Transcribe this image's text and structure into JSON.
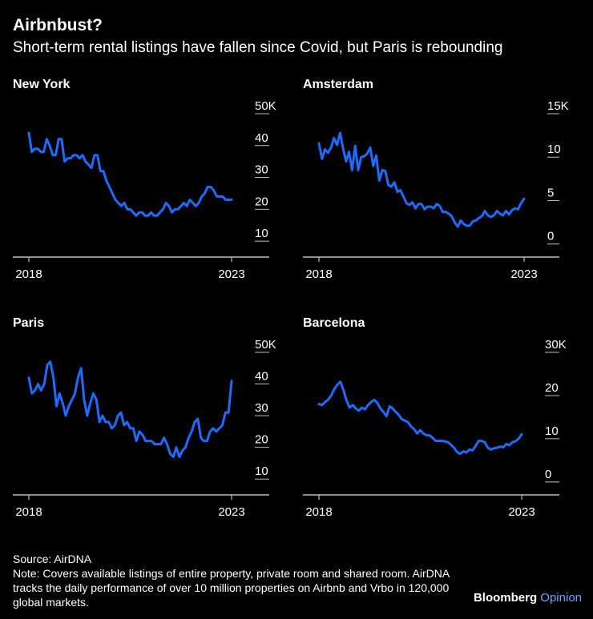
{
  "title": "Airbnbust?",
  "subtitle": "Short-term rental listings have fallen since Covid, but Paris is rebounding",
  "footer": {
    "source": "Source: AirDNA",
    "note": "Note: Covers available listings of entire property, private room and shared room. AirDNA tracks the daily performance of over 10 million properties on Airbnb and Vrbo in 120,000 global markets."
  },
  "brand": {
    "name": "Bloomberg",
    "suffix": "Opinion"
  },
  "colors": {
    "line": "#1f6bff",
    "grid": "#bdbdbd",
    "background": "#000000",
    "text": "#ffffff"
  },
  "chart_data": [
    {
      "type": "line",
      "title": "New York",
      "x_start": 2018.0,
      "x_end": 2023.0,
      "x_ticks": [
        2018,
        2023
      ],
      "y_ticks": [
        10,
        20,
        30,
        40,
        50
      ],
      "y_tick_labels": [
        "10",
        "20",
        "30",
        "40",
        "50K"
      ],
      "ylim": [
        5,
        50
      ],
      "values": [
        44,
        38,
        39,
        39,
        38,
        38,
        42,
        40,
        37,
        37,
        42,
        42,
        35,
        36,
        36,
        37,
        37,
        36,
        37,
        35,
        34,
        33,
        37,
        37,
        32,
        32,
        29,
        27,
        25,
        23,
        22,
        21,
        22,
        20,
        20,
        19,
        18,
        19,
        19,
        18,
        18,
        19,
        18,
        18,
        19,
        20,
        22,
        21,
        19,
        20,
        20,
        21,
        22,
        21,
        23,
        22,
        21,
        22,
        24,
        25,
        27,
        27,
        26,
        24,
        24,
        24,
        23,
        23,
        23
      ]
    },
    {
      "type": "line",
      "title": "Amsterdam",
      "x_start": 2018.0,
      "x_end": 2023.0,
      "x_ticks": [
        2018,
        2023
      ],
      "y_ticks": [
        0,
        5,
        10,
        15
      ],
      "y_tick_labels": [
        "0",
        "5",
        "10",
        "15K"
      ],
      "ylim": [
        -1.5,
        15
      ],
      "values": [
        11.6,
        9.8,
        10.9,
        10.5,
        11.1,
        12.2,
        11.4,
        12.8,
        11.0,
        9.5,
        10.6,
        8.5,
        11.3,
        8.5,
        10.0,
        10.1,
        10.4,
        11.1,
        9.0,
        10.2,
        7.3,
        8.5,
        8.4,
        6.8,
        6.6,
        7.1,
        6.0,
        6.2,
        5.5,
        4.7,
        4.5,
        4.8,
        4.1,
        4.6,
        4.6,
        4.0,
        4.3,
        4.3,
        4.1,
        4.6,
        4.4,
        3.7,
        3.7,
        3.5,
        3.2,
        2.5,
        2.0,
        2.7,
        2.3,
        2.1,
        2.1,
        2.6,
        2.7,
        3.0,
        3.2,
        3.8,
        3.3,
        3.1,
        3.3,
        3.8,
        3.5,
        3.3,
        3.8,
        3.4,
        3.9,
        4.1,
        4.0,
        4.7,
        5.2
      ]
    },
    {
      "type": "line",
      "title": "Paris",
      "x_start": 2018.0,
      "x_end": 2023.0,
      "x_ticks": [
        2018,
        2023
      ],
      "y_ticks": [
        10,
        20,
        30,
        40,
        50
      ],
      "y_tick_labels": [
        "10",
        "20",
        "30",
        "40",
        "50K"
      ],
      "ylim": [
        5,
        50
      ],
      "values": [
        42,
        37,
        38,
        40,
        38,
        40,
        46,
        47,
        42,
        33,
        37,
        34,
        30,
        33,
        35,
        37,
        42,
        45,
        35,
        30,
        34,
        37,
        35,
        28,
        30,
        28,
        28,
        26,
        27,
        30,
        31,
        27,
        28,
        26,
        26,
        22,
        25,
        24,
        22,
        22,
        22,
        21,
        21,
        21,
        23,
        21,
        18,
        17,
        20,
        17,
        19,
        20,
        23,
        25,
        28,
        29,
        23,
        22,
        22,
        25,
        26,
        25,
        26,
        27,
        31,
        31,
        41
      ]
    },
    {
      "type": "line",
      "title": "Barcelona",
      "x_start": 2018.0,
      "x_end": 2023.0,
      "x_ticks": [
        2018,
        2023
      ],
      "y_ticks": [
        0,
        10,
        20,
        30
      ],
      "y_tick_labels": [
        "0",
        "10",
        "20",
        "30K"
      ],
      "ylim": [
        -3,
        30
      ],
      "values": [
        18.0,
        17.8,
        18.5,
        19.0,
        20.0,
        21.5,
        22.5,
        23.2,
        21.2,
        18.8,
        17.2,
        17.8,
        17.0,
        16.5,
        17.2,
        16.8,
        17.8,
        18.5,
        19.0,
        18.3,
        17.0,
        16.2,
        15.2,
        17.5,
        17.0,
        16.2,
        15.5,
        14.5,
        14.2,
        13.8,
        12.8,
        12.2,
        11.2,
        12.0,
        11.2,
        10.8,
        10.8,
        10.2,
        9.5,
        9.5,
        9.5,
        9.4,
        9.2,
        8.6,
        7.9,
        6.9,
        6.5,
        7.1,
        6.8,
        7.5,
        7.3,
        8.3,
        9.5,
        9.5,
        9.2,
        7.9,
        7.5,
        7.8,
        7.9,
        8.2,
        8.0,
        8.8,
        8.5,
        9.2,
        9.4,
        10.0,
        11.0
      ]
    }
  ]
}
